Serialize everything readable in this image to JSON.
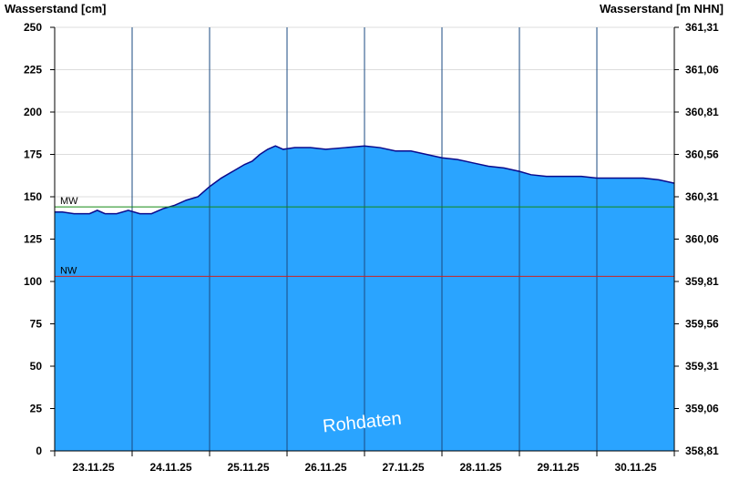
{
  "chart_data": {
    "type": "area",
    "left_axis_label": "Wasserstand [cm]",
    "right_axis_label": "Wasserstand [m NHN]",
    "ylim": [
      0,
      250
    ],
    "yticks": [
      0,
      25,
      50,
      75,
      100,
      125,
      150,
      175,
      200,
      225,
      250
    ],
    "right_ticks": [
      "358,81",
      "359,06",
      "359,31",
      "359,56",
      "359,81",
      "360,06",
      "360,31",
      "360,56",
      "360,81",
      "361,06",
      "361,31"
    ],
    "xlim": [
      0,
      8
    ],
    "x_unit": "days from 23.11.25 00:00",
    "day_labels": [
      "23.11.25",
      "24.11.25",
      "25.11.25",
      "26.11.25",
      "27.11.25",
      "28.11.25",
      "29.11.25",
      "30.11.25"
    ],
    "series": [
      {
        "values": [
          [
            0.0,
            141
          ],
          [
            0.1,
            141
          ],
          [
            0.25,
            140
          ],
          [
            0.45,
            140
          ],
          [
            0.55,
            142
          ],
          [
            0.65,
            140
          ],
          [
            0.8,
            140
          ],
          [
            0.95,
            142
          ],
          [
            1.1,
            140
          ],
          [
            1.25,
            140
          ],
          [
            1.4,
            143
          ],
          [
            1.55,
            145
          ],
          [
            1.7,
            148
          ],
          [
            1.85,
            150
          ],
          [
            2.0,
            156
          ],
          [
            2.15,
            161
          ],
          [
            2.3,
            165
          ],
          [
            2.45,
            169
          ],
          [
            2.55,
            171
          ],
          [
            2.65,
            175
          ],
          [
            2.75,
            178
          ],
          [
            2.85,
            180
          ],
          [
            2.95,
            178
          ],
          [
            3.1,
            179
          ],
          [
            3.3,
            179
          ],
          [
            3.5,
            178
          ],
          [
            3.75,
            179
          ],
          [
            4.0,
            180
          ],
          [
            4.2,
            179
          ],
          [
            4.4,
            177
          ],
          [
            4.6,
            177
          ],
          [
            4.8,
            175
          ],
          [
            5.0,
            173
          ],
          [
            5.2,
            172
          ],
          [
            5.4,
            170
          ],
          [
            5.6,
            168
          ],
          [
            5.8,
            167
          ],
          [
            6.0,
            165
          ],
          [
            6.15,
            163
          ],
          [
            6.35,
            162
          ],
          [
            6.6,
            162
          ],
          [
            6.8,
            162
          ],
          [
            7.0,
            161
          ],
          [
            7.3,
            161
          ],
          [
            7.6,
            161
          ],
          [
            7.8,
            160
          ],
          [
            8.0,
            158
          ]
        ]
      }
    ],
    "reference_lines": [
      {
        "label": "MW",
        "value": 144,
        "color": "#138a13"
      },
      {
        "label": "NW",
        "value": 103,
        "color": "#cc2222"
      }
    ],
    "watermark": "Rohdaten",
    "fill_color": "#2aa4ff",
    "line_color": "#0a0a8c",
    "grid": true
  }
}
